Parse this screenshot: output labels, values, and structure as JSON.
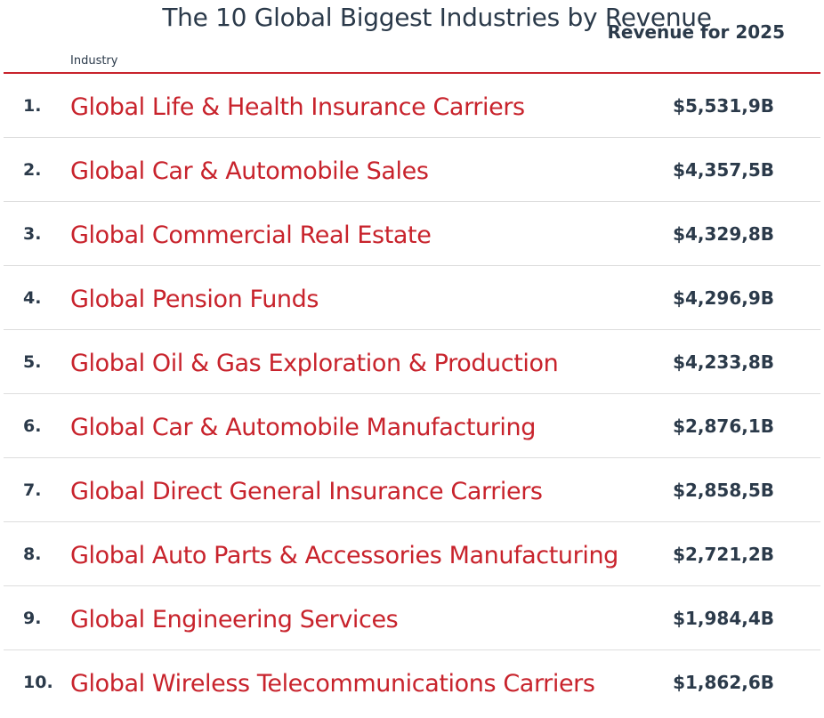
{
  "title": "The 10 Global Biggest Industries by Revenue",
  "columns": {
    "industry": "Industry",
    "revenue": "Revenue for 2025"
  },
  "accent_color": "#c8232c",
  "text_color": "#2b3a4a",
  "rows": [
    {
      "rank": "1.",
      "name": "Global Life & Health Insurance Carriers",
      "revenue": "$5,531,9B"
    },
    {
      "rank": "2.",
      "name": "Global Car & Automobile Sales",
      "revenue": "$4,357,5B"
    },
    {
      "rank": "3.",
      "name": "Global Commercial Real Estate",
      "revenue": "$4,329,8B"
    },
    {
      "rank": "4.",
      "name": "Global Pension Funds",
      "revenue": "$4,296,9B"
    },
    {
      "rank": "5.",
      "name": "Global Oil & Gas Exploration & Production",
      "revenue": "$4,233,8B"
    },
    {
      "rank": "6.",
      "name": "Global Car & Automobile Manufacturing",
      "revenue": "$2,876,1B"
    },
    {
      "rank": "7.",
      "name": "Global Direct General Insurance Carriers",
      "revenue": "$2,858,5B"
    },
    {
      "rank": "8.",
      "name": "Global Auto Parts & Accessories Manufacturing",
      "revenue": "$2,721,2B"
    },
    {
      "rank": "9.",
      "name": "Global Engineering Services",
      "revenue": "$1,984,4B"
    },
    {
      "rank": "10.",
      "name": "Global Wireless Telecommunications Carriers",
      "revenue": "$1,862,6B"
    }
  ]
}
